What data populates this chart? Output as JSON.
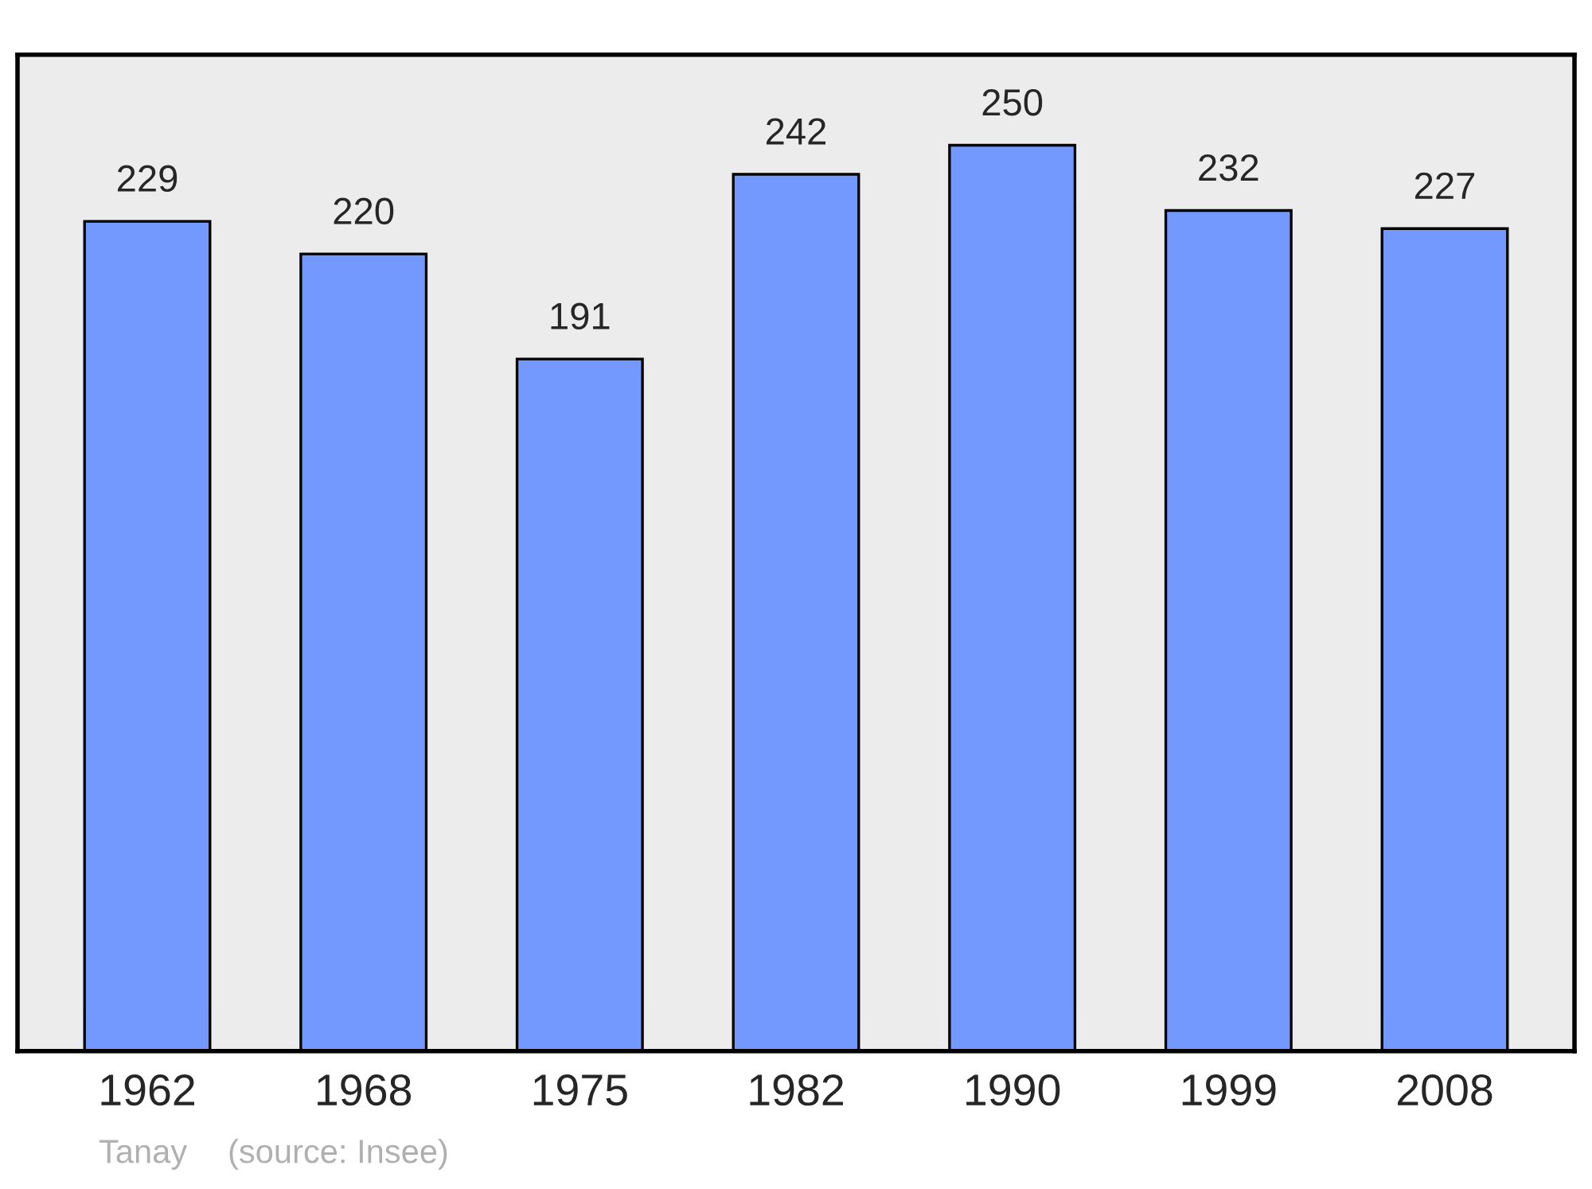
{
  "chart_data": {
    "type": "bar",
    "categories": [
      "1962",
      "1968",
      "1975",
      "1982",
      "1990",
      "1999",
      "2008"
    ],
    "values": [
      229,
      220,
      191,
      242,
      250,
      232,
      227
    ],
    "color": "#7399ff",
    "data_labels": true,
    "grid": false,
    "annotations": [
      "Tanay",
      "(source: Insee)"
    ]
  }
}
